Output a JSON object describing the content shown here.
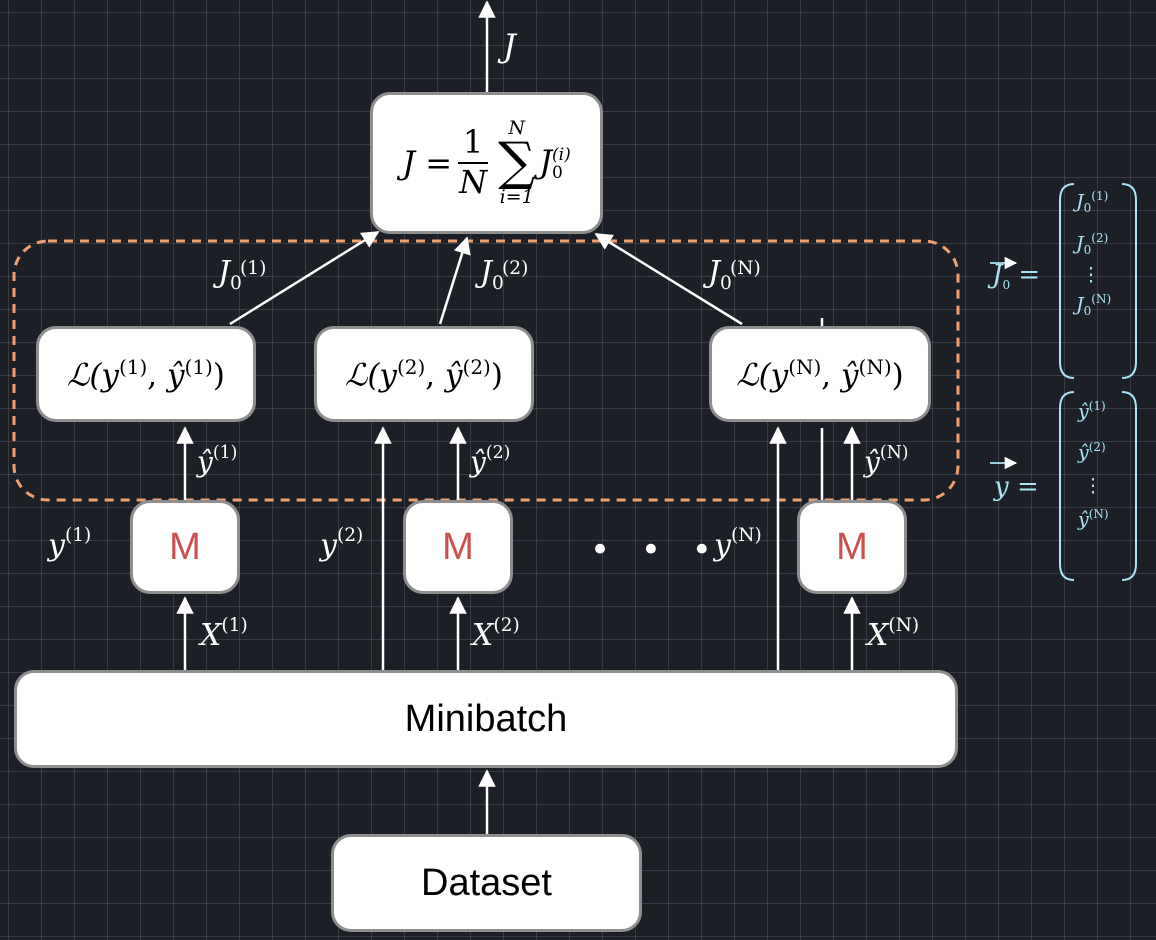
{
  "nodes": {
    "dataset": "Dataset",
    "minibatch": "Minibatch",
    "model": "M",
    "cost_lhs": "J =",
    "cost_frac_num": "1",
    "cost_frac_den": "N",
    "cost_sum_top": "N",
    "cost_sum_bottom": "i=1",
    "cost_term": "J",
    "cost_term_sup": "(i)",
    "cost_term_sub": "0"
  },
  "losses": [
    {
      "text": "ℒ(y",
      "idx": "(1)",
      "yhat": "ŷ",
      "close": ")"
    },
    {
      "text": "ℒ(y",
      "idx": "(2)",
      "yhat": "ŷ",
      "close": ")"
    },
    {
      "text": "ℒ(y",
      "idx": "(N)",
      "yhat": "ŷ",
      "close": ")"
    }
  ],
  "labels": {
    "J_out": "J",
    "ellipsis": "• • •",
    "j_sym": "J",
    "j_sub": "0",
    "idx1": "(1)",
    "idx2": "(2)",
    "idxN": "(N)",
    "y_sym": "y",
    "yhat_sym": "ŷ",
    "x_sym": "X"
  },
  "vectors": {
    "J_lhs": "J",
    "J_lhs_sub": "0",
    "y_lhs": "y",
    "equals": "=",
    "dots": "⋮"
  },
  "colors": {
    "background": "#1c1f26",
    "box_border": "#8e8e8e",
    "model_text": "#c9504f",
    "dashed_region": "#f0a070",
    "vector_text": "#a8e4f5",
    "arrow": "#ffffff"
  }
}
